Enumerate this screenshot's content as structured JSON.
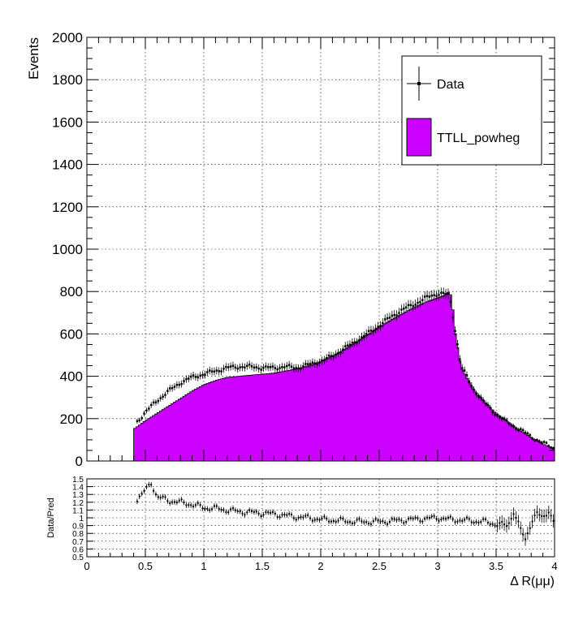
{
  "chart_data": [
    {
      "type": "histogram",
      "title": "",
      "ylabel": "Events",
      "xlabel": "",
      "xlim": [
        0,
        4
      ],
      "ylim": [
        0,
        2000
      ],
      "x_ticks": [
        0,
        0.5,
        1,
        1.5,
        2,
        2.5,
        3,
        3.5,
        4
      ],
      "y_ticks": [
        0,
        200,
        400,
        600,
        800,
        1000,
        1200,
        1400,
        1600,
        1800,
        2000
      ],
      "y_tick_labels": [
        "0",
        "200",
        "400",
        "600",
        "800",
        "1000",
        "1200",
        "1400",
        "1600",
        "1800",
        "2000"
      ],
      "grid": true,
      "legend_position": "top-right",
      "legend": [
        {
          "label": "Data",
          "style": "markers-with-error-bars"
        },
        {
          "label": "TTLL_powheg",
          "style": "filled",
          "color": "#cc00ff"
        }
      ],
      "series": [
        {
          "name": "TTLL_powheg",
          "kind": "filled-step",
          "color": "#cc00ff",
          "x": [
            0.4,
            0.5,
            0.6,
            0.7,
            0.8,
            0.9,
            1.0,
            1.1,
            1.2,
            1.3,
            1.4,
            1.5,
            1.6,
            1.7,
            1.8,
            1.9,
            2.0,
            2.1,
            2.2,
            2.3,
            2.4,
            2.5,
            2.6,
            2.7,
            2.8,
            2.9,
            3.0,
            3.05,
            3.1,
            3.12,
            3.15,
            3.2,
            3.3,
            3.4,
            3.5,
            3.6,
            3.7,
            3.8,
            3.9,
            4.0
          ],
          "y": [
            150,
            190,
            225,
            260,
            295,
            330,
            360,
            380,
            395,
            400,
            405,
            410,
            415,
            425,
            435,
            450,
            470,
            495,
            525,
            560,
            595,
            630,
            665,
            695,
            725,
            750,
            770,
            780,
            800,
            770,
            600,
            440,
            340,
            280,
            225,
            185,
            145,
            110,
            80,
            55
          ]
        },
        {
          "name": "Data",
          "kind": "points-with-errors",
          "color": "#000000",
          "x": [
            0.42,
            0.5,
            0.6,
            0.7,
            0.8,
            0.9,
            1.0,
            1.1,
            1.2,
            1.3,
            1.4,
            1.5,
            1.6,
            1.7,
            1.8,
            1.9,
            2.0,
            2.1,
            2.2,
            2.3,
            2.4,
            2.5,
            2.6,
            2.7,
            2.8,
            2.9,
            3.0,
            3.05,
            3.1,
            3.15,
            3.2,
            3.3,
            3.4,
            3.5,
            3.6,
            3.7,
            3.8,
            3.9,
            4.0
          ],
          "y": [
            180,
            230,
            285,
            330,
            370,
            395,
            410,
            425,
            440,
            445,
            445,
            440,
            440,
            445,
            440,
            455,
            470,
            495,
            530,
            565,
            600,
            640,
            680,
            715,
            740,
            770,
            790,
            790,
            780,
            620,
            450,
            345,
            275,
            220,
            180,
            150,
            115,
            85,
            60
          ]
        }
      ]
    },
    {
      "type": "scatter",
      "title": "",
      "ylabel": "Data/Pred",
      "xlabel": "Δ R(μμ)",
      "xlim": [
        0,
        4
      ],
      "ylim": [
        0.5,
        1.5
      ],
      "x_ticks": [
        0,
        0.5,
        1,
        1.5,
        2,
        2.5,
        3,
        3.5,
        4
      ],
      "x_tick_labels": [
        "0",
        "0.5",
        "1",
        "1.5",
        "2",
        "2.5",
        "3",
        "3.5",
        "4"
      ],
      "y_ticks": [
        0.5,
        0.6,
        0.7,
        0.8,
        0.9,
        1,
        1.1,
        1.2,
        1.3,
        1.4,
        1.5
      ],
      "y_tick_labels": [
        "0.5",
        "0.6",
        "0.7",
        "0.8",
        "0.9",
        "1",
        "1.1",
        "1.2",
        "1.3",
        "1.4",
        "1.5"
      ],
      "grid": true,
      "series": [
        {
          "name": "Data/Pred",
          "x": [
            0.42,
            0.5,
            0.55,
            0.6,
            0.7,
            0.8,
            0.9,
            1.0,
            1.1,
            1.2,
            1.3,
            1.4,
            1.5,
            1.6,
            1.7,
            1.8,
            1.9,
            2.0,
            2.1,
            2.2,
            2.3,
            2.4,
            2.5,
            2.6,
            2.7,
            2.8,
            2.9,
            3.0,
            3.1,
            3.2,
            3.3,
            3.4,
            3.5,
            3.6,
            3.65,
            3.7,
            3.75,
            3.8,
            3.85,
            3.9,
            3.95,
            4.0
          ],
          "y": [
            1.22,
            1.35,
            1.45,
            1.27,
            1.22,
            1.2,
            1.17,
            1.13,
            1.12,
            1.1,
            1.08,
            1.07,
            1.06,
            1.05,
            1.03,
            1.01,
            1.0,
            0.98,
            0.97,
            0.96,
            0.95,
            0.95,
            0.95,
            0.96,
            0.97,
            0.98,
            0.99,
            1.0,
            0.98,
            0.97,
            0.96,
            0.95,
            0.92,
            0.9,
            1.08,
            0.88,
            0.72,
            0.95,
            1.05,
            1.0,
            1.1,
            0.9
          ]
        }
      ]
    }
  ]
}
